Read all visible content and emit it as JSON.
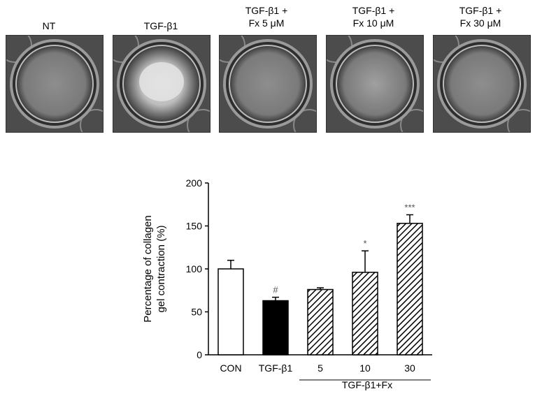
{
  "panels": [
    {
      "line1": "NT",
      "line2": "",
      "contraction": "none"
    },
    {
      "line1": "TGF-β1",
      "line2": "",
      "contraction": "strong"
    },
    {
      "line1": "TGF-β1 +",
      "line2": "Fx 5 μM",
      "contraction": "none"
    },
    {
      "line1": "TGF-β1 +",
      "line2": "Fx 10 μM",
      "contraction": "weak"
    },
    {
      "line1": "TGF-β1 +",
      "line2": "Fx 30 μM",
      "contraction": "none"
    }
  ],
  "chart_data": {
    "type": "bar",
    "categories": [
      "CON",
      "TGF-β1",
      "5",
      "10",
      "30"
    ],
    "values": [
      100,
      63,
      76,
      96,
      153
    ],
    "errors": [
      10,
      4,
      2,
      25,
      10
    ],
    "fills": [
      "white",
      "black",
      "hatched",
      "hatched",
      "hatched"
    ],
    "significance": [
      "",
      "#",
      "",
      "*",
      "***"
    ],
    "ylabel_line1": "Percentage of collagen",
    "ylabel_line2": "gel contraction (%)",
    "ylim": [
      0,
      200
    ],
    "yticks": [
      0,
      50,
      100,
      150,
      200
    ],
    "group_label": "TGF-β1+Fx",
    "grid": false
  }
}
